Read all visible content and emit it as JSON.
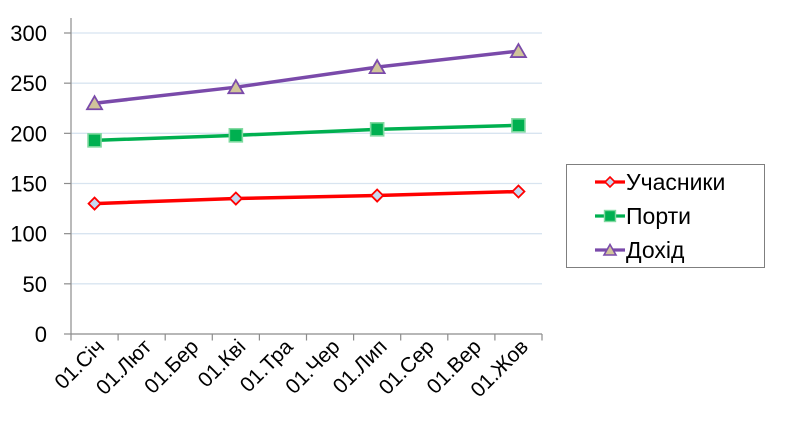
{
  "chart_data": {
    "type": "line",
    "title": "",
    "xlabel": "",
    "ylabel": "",
    "categories": [
      "01.Січ",
      "01.Лют",
      "01.Бер",
      "01.Кві",
      "01.Тра",
      "01.Чер",
      "01.Лип",
      "01.Сер",
      "01.Вер",
      "01.Жов"
    ],
    "series": [
      {
        "name": "Учасники",
        "marker": "diamond",
        "color": "#FF0000",
        "marker_fill": "#C5D9F1",
        "marker_stroke": "#FF0000",
        "values": [
          130,
          null,
          null,
          135,
          null,
          null,
          138,
          null,
          null,
          142
        ]
      },
      {
        "name": "Порти",
        "marker": "square",
        "color": "#00B050",
        "marker_fill": "#00B050",
        "marker_stroke": "#7FD99F",
        "values": [
          193,
          null,
          null,
          198,
          null,
          null,
          204,
          null,
          null,
          208
        ]
      },
      {
        "name": "Дохід",
        "marker": "triangle",
        "color": "#7A4AAA",
        "marker_fill": "#D0C49A",
        "marker_stroke": "#7A4AAA",
        "values": [
          230,
          null,
          null,
          246,
          null,
          null,
          266,
          null,
          null,
          282
        ]
      }
    ],
    "ylim": [
      0,
      300
    ],
    "yticks": [
      0,
      50,
      100,
      150,
      200,
      250,
      300
    ],
    "grid": true,
    "gridline_color": "#D8E4F0",
    "axis_color": "#8C8C8C",
    "text_color": "#000000",
    "legend_position": "right",
    "legend_border_color": "#7F7F7F"
  }
}
